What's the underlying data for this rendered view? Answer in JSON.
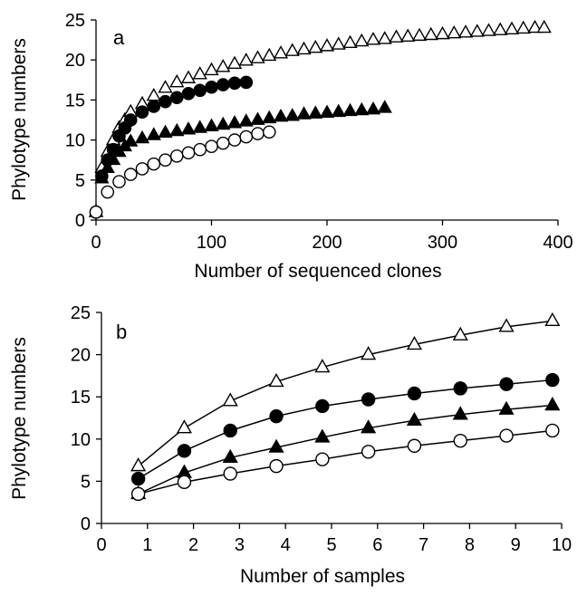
{
  "chart_data": [
    {
      "panel": "a",
      "type": "scatter",
      "xlabel": "Number of sequenced clones",
      "ylabel": "Phylotype numbers",
      "xlim": [
        0,
        400
      ],
      "ylim": [
        0,
        25
      ],
      "xticks": [
        0,
        100,
        200,
        300,
        400
      ],
      "yticks": [
        0,
        5,
        10,
        15,
        20,
        25
      ],
      "series": [
        {
          "marker": "open-triangle",
          "x": [
            0,
            5,
            10,
            15,
            20,
            25,
            30,
            40,
            50,
            60,
            70,
            80,
            90,
            100,
            110,
            120,
            130,
            140,
            150,
            160,
            170,
            180,
            190,
            200,
            210,
            220,
            230,
            240,
            250,
            260,
            270,
            280,
            290,
            300,
            310,
            320,
            330,
            340,
            350,
            360,
            370,
            380,
            388
          ],
          "y": [
            1,
            6.5,
            8.5,
            10,
            11.5,
            12.5,
            13.5,
            14.5,
            15.5,
            16.5,
            17.2,
            17.7,
            18.2,
            18.7,
            19.1,
            19.5,
            19.9,
            20.2,
            20.5,
            20.8,
            21.1,
            21.3,
            21.5,
            21.7,
            21.9,
            22.1,
            22.3,
            22.5,
            22.6,
            22.8,
            22.9,
            23.0,
            23.1,
            23.2,
            23.3,
            23.4,
            23.5,
            23.6,
            23.7,
            23.8,
            23.9,
            24.0,
            24.0
          ]
        },
        {
          "marker": "filled-circle",
          "x": [
            0,
            5,
            10,
            15,
            20,
            25,
            30,
            40,
            50,
            60,
            70,
            80,
            90,
            100,
            110,
            120,
            130
          ],
          "y": [
            1,
            5.5,
            7.5,
            8.8,
            10.5,
            11.5,
            12.5,
            13.5,
            14.2,
            14.8,
            15.3,
            15.8,
            16.2,
            16.6,
            16.9,
            17.1,
            17.2
          ]
        },
        {
          "marker": "filled-triangle",
          "x": [
            0,
            5,
            10,
            15,
            20,
            25,
            30,
            40,
            50,
            60,
            70,
            80,
            90,
            100,
            110,
            120,
            130,
            140,
            150,
            160,
            170,
            180,
            190,
            200,
            210,
            220,
            230,
            240,
            250
          ],
          "y": [
            1,
            5.2,
            6.5,
            7.5,
            8.5,
            9.2,
            9.8,
            10.2,
            10.6,
            10.9,
            11.1,
            11.3,
            11.5,
            11.7,
            11.9,
            12.1,
            12.3,
            12.5,
            12.7,
            12.9,
            13.0,
            13.2,
            13.3,
            13.4,
            13.5,
            13.6,
            13.7,
            13.8,
            14.0
          ]
        },
        {
          "marker": "open-circle",
          "x": [
            0,
            10,
            20,
            30,
            40,
            50,
            60,
            70,
            80,
            90,
            100,
            110,
            120,
            130,
            140,
            150
          ],
          "y": [
            1,
            3.5,
            4.8,
            5.7,
            6.4,
            7.0,
            7.5,
            8.0,
            8.4,
            8.8,
            9.2,
            9.6,
            10.0,
            10.4,
            10.8,
            11.0
          ]
        }
      ]
    },
    {
      "panel": "b",
      "type": "line",
      "xlabel": "Number of samples",
      "ylabel": "Phylotype numbers",
      "xlim": [
        0,
        10
      ],
      "ylim": [
        0,
        25
      ],
      "xticks": [
        0,
        1,
        2,
        3,
        4,
        5,
        6,
        7,
        8,
        9,
        10
      ],
      "yticks": [
        0,
        5,
        10,
        15,
        20,
        25
      ],
      "x": [
        0.8,
        1.8,
        2.8,
        3.8,
        4.8,
        5.8,
        6.8,
        7.8,
        8.8,
        9.8
      ],
      "series": [
        {
          "marker": "open-triangle",
          "values": [
            6.8,
            11.3,
            14.5,
            16.8,
            18.5,
            20.0,
            21.2,
            22.3,
            23.3,
            24.0
          ]
        },
        {
          "marker": "filled-circle",
          "values": [
            5.3,
            8.6,
            11.0,
            12.7,
            13.9,
            14.7,
            15.4,
            16.0,
            16.5,
            17.0
          ]
        },
        {
          "marker": "filled-triangle",
          "values": [
            3.5,
            6.0,
            7.8,
            9.0,
            10.2,
            11.3,
            12.2,
            12.9,
            13.5,
            14.0
          ]
        },
        {
          "marker": "open-circle",
          "values": [
            3.5,
            4.9,
            5.9,
            6.8,
            7.6,
            8.5,
            9.2,
            9.8,
            10.4,
            11.0
          ]
        }
      ]
    }
  ]
}
